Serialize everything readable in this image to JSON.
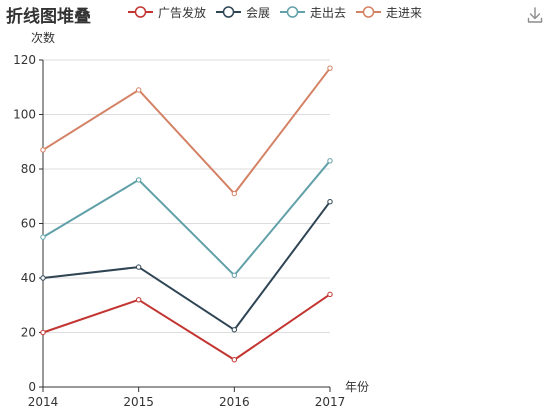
{
  "icons": {
    "download": "download-icon"
  },
  "chart_data": {
    "type": "line",
    "title": "折线图堆叠",
    "xlabel": "年份",
    "ylabel": "次数",
    "categories": [
      "2014",
      "2015",
      "2016",
      "2017"
    ],
    "ylim": [
      0,
      120
    ],
    "yticks": [
      0,
      20,
      40,
      60,
      80,
      100,
      120
    ],
    "stacked": true,
    "grid": true,
    "legend_position": "top",
    "series": [
      {
        "name": "广告发放",
        "color": "#c23531",
        "values": [
          20,
          32,
          10,
          34
        ]
      },
      {
        "name": "会展",
        "color": "#2f4554",
        "values": [
          20,
          12,
          11,
          34
        ]
      },
      {
        "name": "走出去",
        "color": "#61a0a8",
        "values": [
          15,
          32,
          20,
          15
        ]
      },
      {
        "name": "走进来",
        "color": "#d48265",
        "values": [
          32,
          33,
          30,
          34
        ]
      }
    ]
  }
}
